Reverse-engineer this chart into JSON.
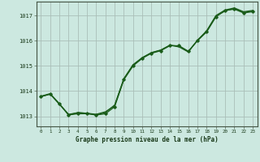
{
  "title": "Graphe pression niveau de la mer (hPa)",
  "bg_color": "#cce8e0",
  "line_color": "#1a5c1a",
  "grid_color": "#b8c8c0",
  "x_ticks": [
    0,
    1,
    2,
    3,
    4,
    5,
    6,
    7,
    8,
    9,
    10,
    11,
    12,
    13,
    14,
    15,
    16,
    17,
    18,
    19,
    20,
    21,
    22,
    23
  ],
  "y_ticks": [
    1013,
    1014,
    1015,
    1016,
    1017
  ],
  "ylim": [
    1012.6,
    1017.55
  ],
  "xlim": [
    -0.5,
    23.5
  ],
  "series1_x": [
    0,
    1,
    2,
    3,
    4,
    5,
    6,
    7,
    8,
    9,
    10,
    11,
    12,
    13,
    14,
    15,
    16,
    17,
    18,
    19,
    20,
    21,
    22,
    23
  ],
  "series1_y": [
    1013.78,
    1013.88,
    1013.48,
    1013.08,
    1013.14,
    1013.12,
    1013.08,
    1013.18,
    1013.42,
    1014.48,
    1015.03,
    1015.32,
    1015.52,
    1015.62,
    1015.82,
    1015.75,
    1015.55,
    1016.02,
    1016.38,
    1016.97,
    1017.18,
    1017.28,
    1017.12,
    1017.18
  ],
  "series2_x": [
    0,
    1,
    2,
    3,
    4,
    5,
    6,
    7,
    8,
    9,
    10,
    11,
    12,
    13,
    14,
    15,
    16,
    17,
    18,
    19,
    20,
    21,
    22,
    23
  ],
  "series2_y": [
    1013.8,
    1013.9,
    1013.5,
    1013.05,
    1013.1,
    1013.1,
    1013.05,
    1013.1,
    1013.38,
    1014.45,
    1015.0,
    1015.3,
    1015.5,
    1015.6,
    1015.8,
    1015.8,
    1015.58,
    1016.0,
    1016.35,
    1016.95,
    1017.2,
    1017.25,
    1017.1,
    1017.15
  ],
  "series3_x": [
    0,
    1,
    2,
    3,
    4,
    5,
    6,
    7,
    8,
    9,
    10,
    11,
    12,
    13,
    14,
    15,
    16,
    17,
    18,
    19,
    20,
    21,
    22,
    23
  ],
  "series3_y": [
    1013.78,
    1013.88,
    1013.48,
    1013.05,
    1013.15,
    1013.12,
    1013.05,
    1013.15,
    1013.45,
    1014.5,
    1015.05,
    1015.33,
    1015.53,
    1015.63,
    1015.82,
    1015.78,
    1015.57,
    1016.02,
    1016.4,
    1017.0,
    1017.22,
    1017.3,
    1017.15,
    1017.2
  ]
}
